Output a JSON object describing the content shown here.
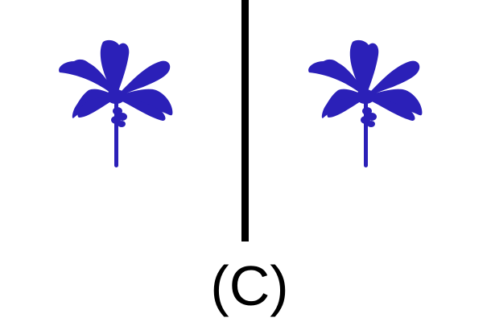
{
  "caption": "(C)",
  "images": [
    {
      "subject": "palm-tree",
      "color": "#2B20B8"
    },
    {
      "subject": "palm-tree",
      "color": "#2B20B8"
    }
  ],
  "divider_color": "#000000",
  "background": "#FFFFFF"
}
